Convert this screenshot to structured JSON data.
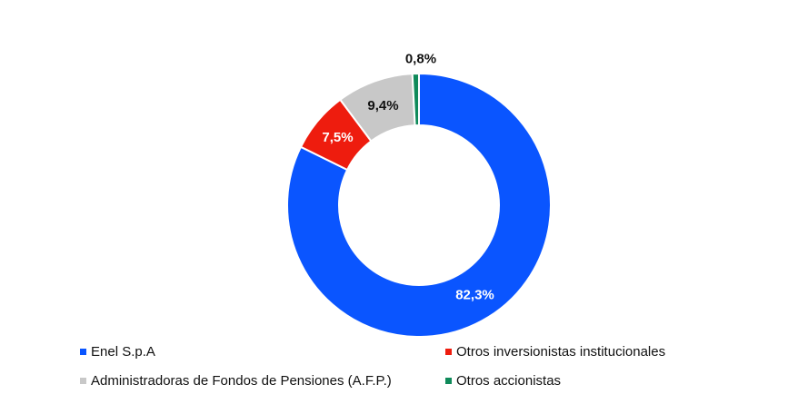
{
  "chart_data": {
    "type": "pie",
    "donut": true,
    "title": "",
    "slices": [
      {
        "label": "Enel S.p.A",
        "value": 82.3,
        "value_label": "82,3%",
        "color": "#0a55ff",
        "label_color": "#ffffff"
      },
      {
        "label": "Otros inversionistas institucionales",
        "value": 7.5,
        "value_label": "7,5%",
        "color": "#ee1c0e",
        "label_color": "#ffffff"
      },
      {
        "label": "Administradoras de Fondos de Pensiones (A.F.P.)",
        "value": 9.4,
        "value_label": "9,4%",
        "color": "#c8c8c8",
        "label_color": "#111111"
      },
      {
        "label": "Otros accionistas",
        "value": 0.8,
        "value_label": "0,8%",
        "color": "#0f8a5a",
        "label_color": "#111111"
      }
    ],
    "legend": {
      "placement": "bottom",
      "order": [
        {
          "label": "Enel S.p.A",
          "color": "#0a55ff"
        },
        {
          "label": "Otros inversionistas institucionales",
          "color": "#ee1c0e"
        },
        {
          "label": "Administradoras de Fondos de Pensiones (A.F.P.)",
          "color": "#c8c8c8"
        },
        {
          "label": "Otros accionistas",
          "color": "#0f8a5a"
        }
      ]
    }
  }
}
